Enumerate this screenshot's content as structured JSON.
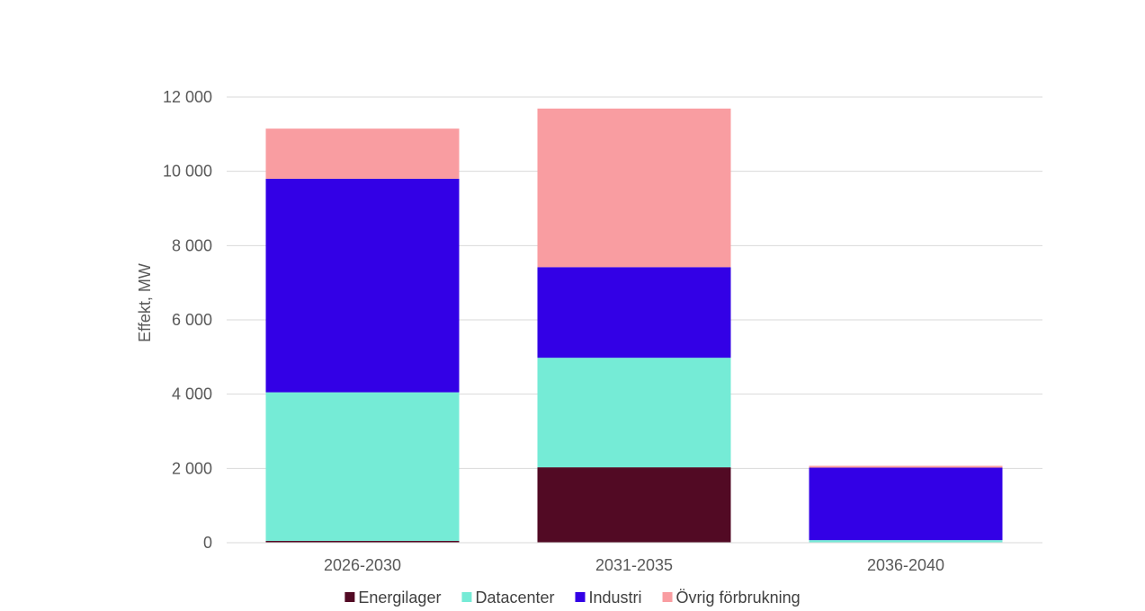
{
  "chart_data": {
    "type": "bar",
    "stacked": true,
    "title": "",
    "xlabel": "",
    "ylabel": "Effekt, MW",
    "ylim": [
      0,
      12000
    ],
    "yticks": [
      0,
      2000,
      4000,
      6000,
      8000,
      10000,
      12000
    ],
    "ytick_labels": [
      "0",
      "2 000",
      "4 000",
      "6 000",
      "8 000",
      "10 000",
      "12 000"
    ],
    "grid": true,
    "legend_position": "bottom",
    "categories": [
      "2026-2030",
      "2031-2035",
      "2036-2040"
    ],
    "series": [
      {
        "name": "Energilager",
        "color": "#520A24",
        "values": [
          50,
          2030,
          0
        ]
      },
      {
        "name": "Datacenter",
        "color": "#75EBD6",
        "values": [
          4000,
          2950,
          70
        ]
      },
      {
        "name": "Industri",
        "color": "#3300E6",
        "values": [
          5750,
          2440,
          1950
        ]
      },
      {
        "name": "Övrig förbrukning",
        "color": "#F99DA1",
        "values": [
          1350,
          4270,
          50
        ]
      }
    ],
    "colors": {
      "grid": "#d9d9d9",
      "text": "#595959",
      "legend_text": "#404040"
    }
  }
}
